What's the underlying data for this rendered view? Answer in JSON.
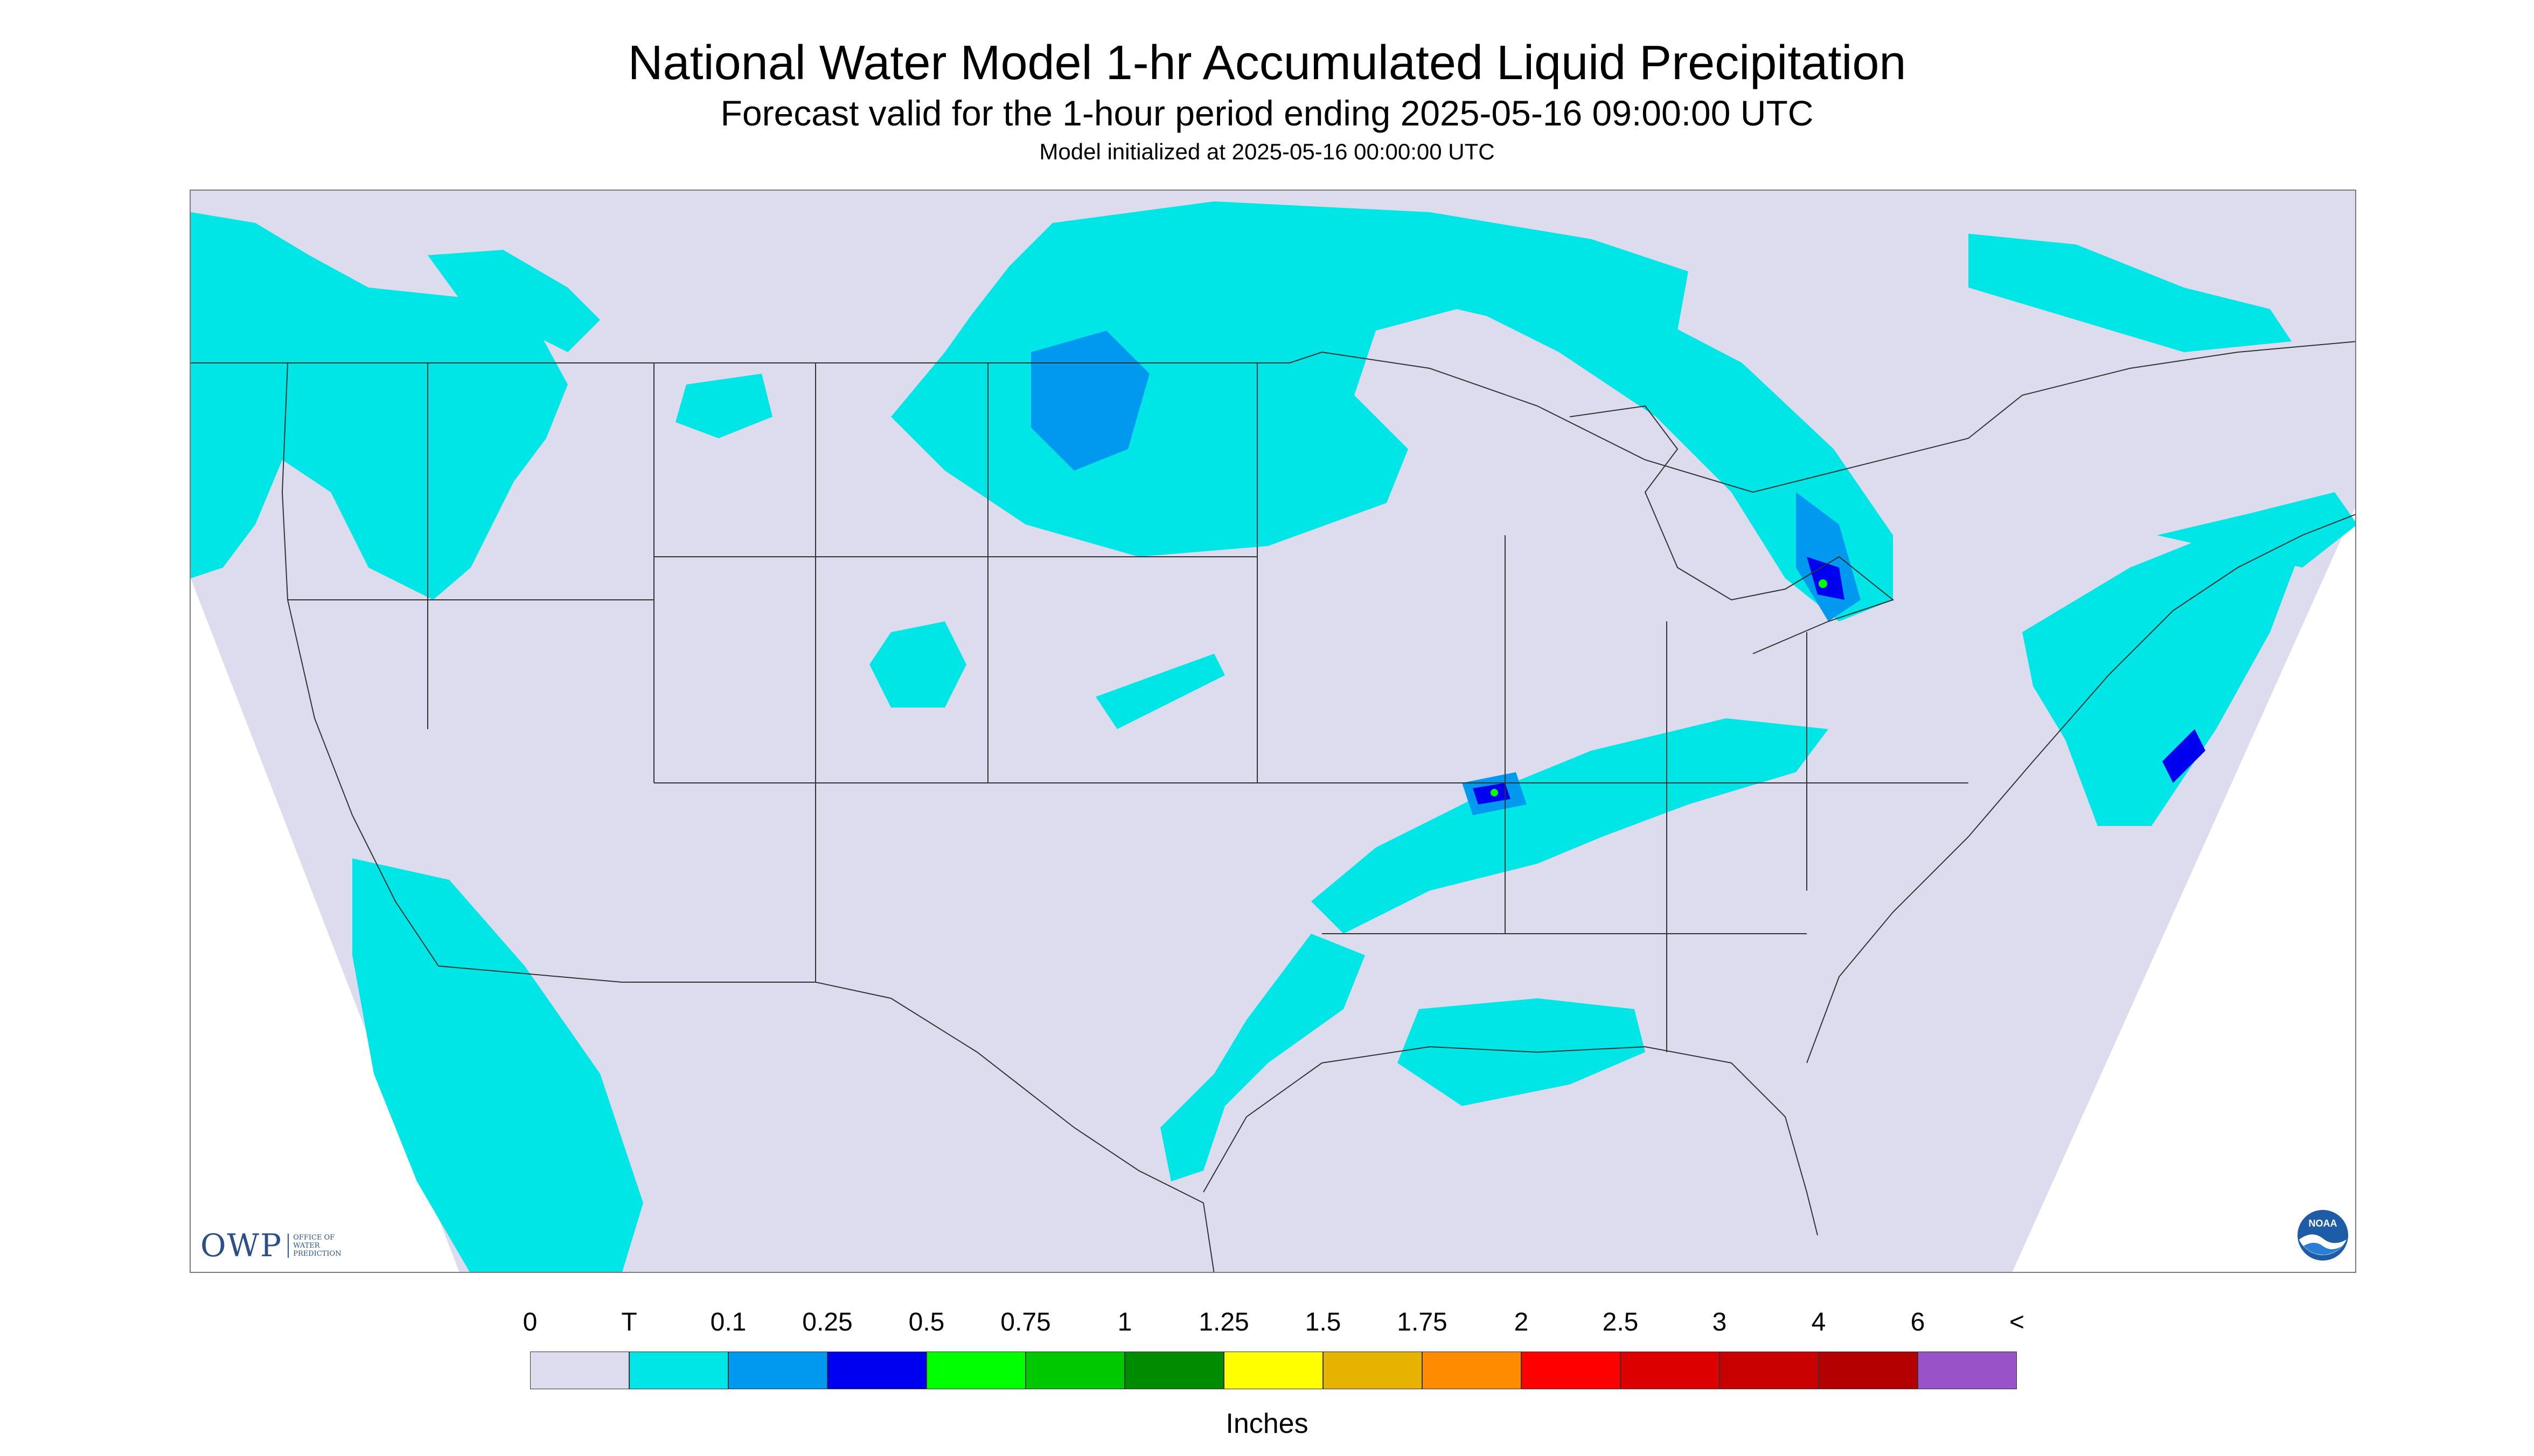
{
  "header": {
    "title": "National Water Model 1-hr Accumulated Liquid Precipitation",
    "subtitle": "Forecast valid for the 1-hour period ending 2025-05-16 09:00:00 UTC",
    "init_line": "Model initialized at 2025-05-16 00:00:00 UTC"
  },
  "logos": {
    "owp_mark": "OWP",
    "owp_sub": "Office of Water Prediction",
    "noaa_mark": "NOAA"
  },
  "legend": {
    "units": "Inches",
    "ticks": [
      "0",
      "T",
      "0.1",
      "0.25",
      "0.5",
      "0.75",
      "1",
      "1.25",
      "1.5",
      "1.75",
      "2",
      "2.5",
      "3",
      "4",
      "6",
      "<"
    ],
    "colors": [
      "#dcdcee",
      "#00e6e6",
      "#0099f0",
      "#0000f0",
      "#00ff00",
      "#00c800",
      "#008c00",
      "#ffff00",
      "#e6b400",
      "#ff8c00",
      "#ff0000",
      "#dc0000",
      "#c80000",
      "#b40000",
      "#ff00ff",
      "#9a52c8"
    ]
  },
  "map": {
    "domain_color": "#dcdcee",
    "outside_color": "#ffffff",
    "line_color": "#333333"
  }
}
